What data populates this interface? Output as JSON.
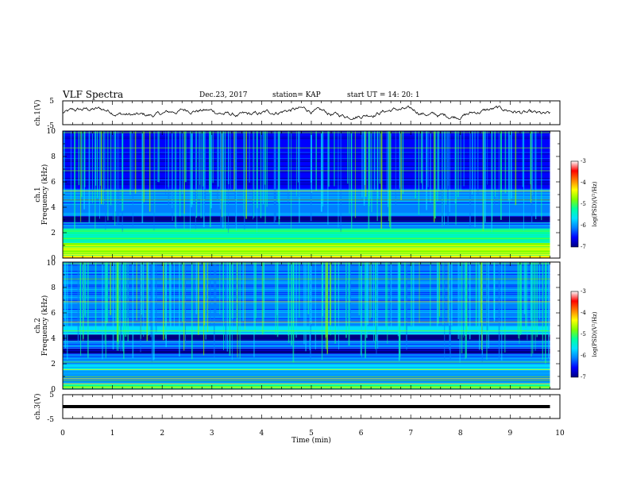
{
  "header": {
    "title": "VLF Spectra",
    "date": "Dec.23, 2017",
    "station": "station= KAP",
    "start": "start  UT =   14: 20: 1"
  },
  "chart_data": [
    {
      "type": "line",
      "ylabel": "ch.1(V)",
      "ylim": [
        -5,
        5
      ],
      "ytick_labels": [
        "5",
        "-5"
      ],
      "xlim": [
        0,
        10
      ],
      "x_end": 9.8,
      "note": "noisy waveform oscillating roughly between -2.5 and 2.5 V"
    },
    {
      "type": "heatmap",
      "ylabel_line1": "ch.1",
      "ylabel_line2": "Frequency (kHz)",
      "ylim": [
        0,
        10
      ],
      "ytick_labels": [
        "0",
        "2",
        "4",
        "6",
        "8",
        "10"
      ],
      "xlim": [
        0,
        10
      ],
      "x_end": 9.8,
      "colorbar": {
        "label": "log(PSD)(V²/Hz)",
        "range": [
          -7,
          -3
        ],
        "tick_labels": [
          "-3",
          "-4",
          "-5",
          "-6",
          "-7"
        ]
      },
      "bands": [
        {
          "from": 0.0,
          "to": 0.3,
          "level": 0.75
        },
        {
          "from": 0.3,
          "to": 1.2,
          "level": 0.6
        },
        {
          "from": 1.2,
          "to": 2.0,
          "level": 0.45
        },
        {
          "from": 2.0,
          "to": 2.3,
          "level": 0.55
        },
        {
          "from": 2.3,
          "to": 2.8,
          "level": 0.3
        },
        {
          "from": 2.8,
          "to": 3.3,
          "level": 0.06
        },
        {
          "from": 3.3,
          "to": 4.6,
          "level": 0.28
        },
        {
          "from": 4.6,
          "to": 5.4,
          "level": 0.32
        },
        {
          "from": 5.4,
          "to": 6.0,
          "level": 0.2
        },
        {
          "from": 6.0,
          "to": 8.0,
          "level": 0.16
        },
        {
          "from": 8.0,
          "to": 10.0,
          "level": 0.12
        }
      ]
    },
    {
      "type": "heatmap",
      "ylabel_line1": "ch.2",
      "ylabel_line2": "Frequency (kHz)",
      "ylim": [
        0,
        10
      ],
      "ytick_labels": [
        "0",
        "2",
        "4",
        "6",
        "8",
        "10"
      ],
      "xlim": [
        0,
        10
      ],
      "x_end": 9.8,
      "colorbar": {
        "label": "log(PSD)(V²/Hz)",
        "range": [
          -7,
          -3
        ],
        "tick_labels": [
          "-3",
          "-4",
          "-5",
          "-6",
          "-7"
        ]
      },
      "bands": [
        {
          "from": 0.0,
          "to": 0.4,
          "level": 0.5
        },
        {
          "from": 0.4,
          "to": 1.5,
          "level": 0.3
        },
        {
          "from": 1.5,
          "to": 2.0,
          "level": 0.42
        },
        {
          "from": 2.0,
          "to": 2.8,
          "level": 0.25
        },
        {
          "from": 2.8,
          "to": 3.2,
          "level": 0.06
        },
        {
          "from": 3.2,
          "to": 3.8,
          "level": 0.3
        },
        {
          "from": 3.8,
          "to": 4.3,
          "level": 0.06
        },
        {
          "from": 4.3,
          "to": 5.0,
          "level": 0.42
        },
        {
          "from": 5.0,
          "to": 7.0,
          "level": 0.26
        },
        {
          "from": 7.0,
          "to": 10.0,
          "level": 0.3
        }
      ]
    },
    {
      "type": "line",
      "ylabel": "ch.3(V)",
      "ylim": [
        -5,
        5
      ],
      "ytick_labels": [
        "5",
        "-5"
      ],
      "xlim": [
        0,
        10
      ],
      "x_end": 9.8,
      "value": 0,
      "xlabel": "Time (min)",
      "xtick_labels": [
        "0",
        "1",
        "2",
        "3",
        "4",
        "5",
        "6",
        "7",
        "8",
        "9",
        "10"
      ]
    }
  ],
  "colors": {
    "colormap": [
      "#000080",
      "#0000ff",
      "#0080ff",
      "#00e0ff",
      "#00ffa0",
      "#80ff00",
      "#ffff00",
      "#ff8000",
      "#ff0000",
      "#ffffff"
    ],
    "line": "#000000"
  }
}
